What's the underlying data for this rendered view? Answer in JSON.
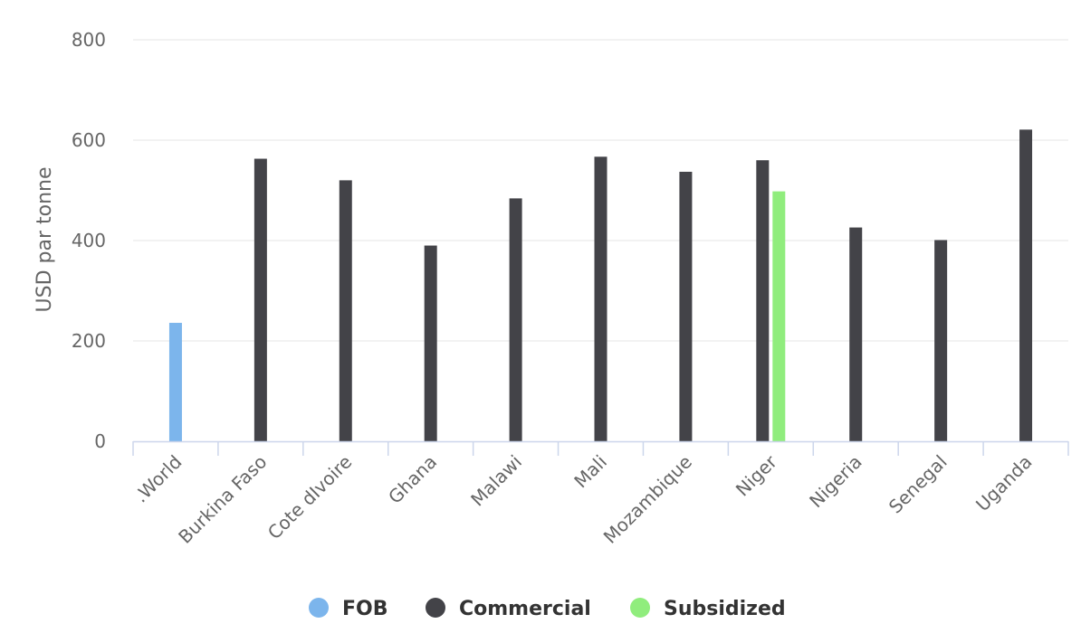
{
  "chart_data": {
    "type": "bar",
    "ylabel": "USD par tonne",
    "xlabel": "",
    "ylim": [
      0,
      800
    ],
    "yticks": [
      0,
      200,
      400,
      600,
      800
    ],
    "grid": true,
    "legend_position": "bottom-center",
    "categories": [
      ".World",
      "Burkina Faso",
      "Cote dIvoire",
      "Ghana",
      "Malawi",
      "Mali",
      "Mozambique",
      "Niger",
      "Nigeria",
      "Senegal",
      "Uganda"
    ],
    "series": [
      {
        "name": "FOB",
        "color": "#7cb5ec",
        "values": [
          236,
          null,
          null,
          null,
          null,
          null,
          null,
          null,
          null,
          null,
          null
        ]
      },
      {
        "name": "Commercial",
        "color": "#434348",
        "values": [
          null,
          563,
          520,
          390,
          484,
          567,
          537,
          560,
          426,
          401,
          621
        ]
      },
      {
        "name": "Subsidized",
        "color": "#90ed7d",
        "values": [
          null,
          null,
          null,
          null,
          null,
          null,
          null,
          498,
          null,
          null,
          null
        ]
      }
    ]
  },
  "colors": {
    "grid": "#e6e6e6",
    "axis": "#ccd6eb",
    "label": "#666666"
  }
}
